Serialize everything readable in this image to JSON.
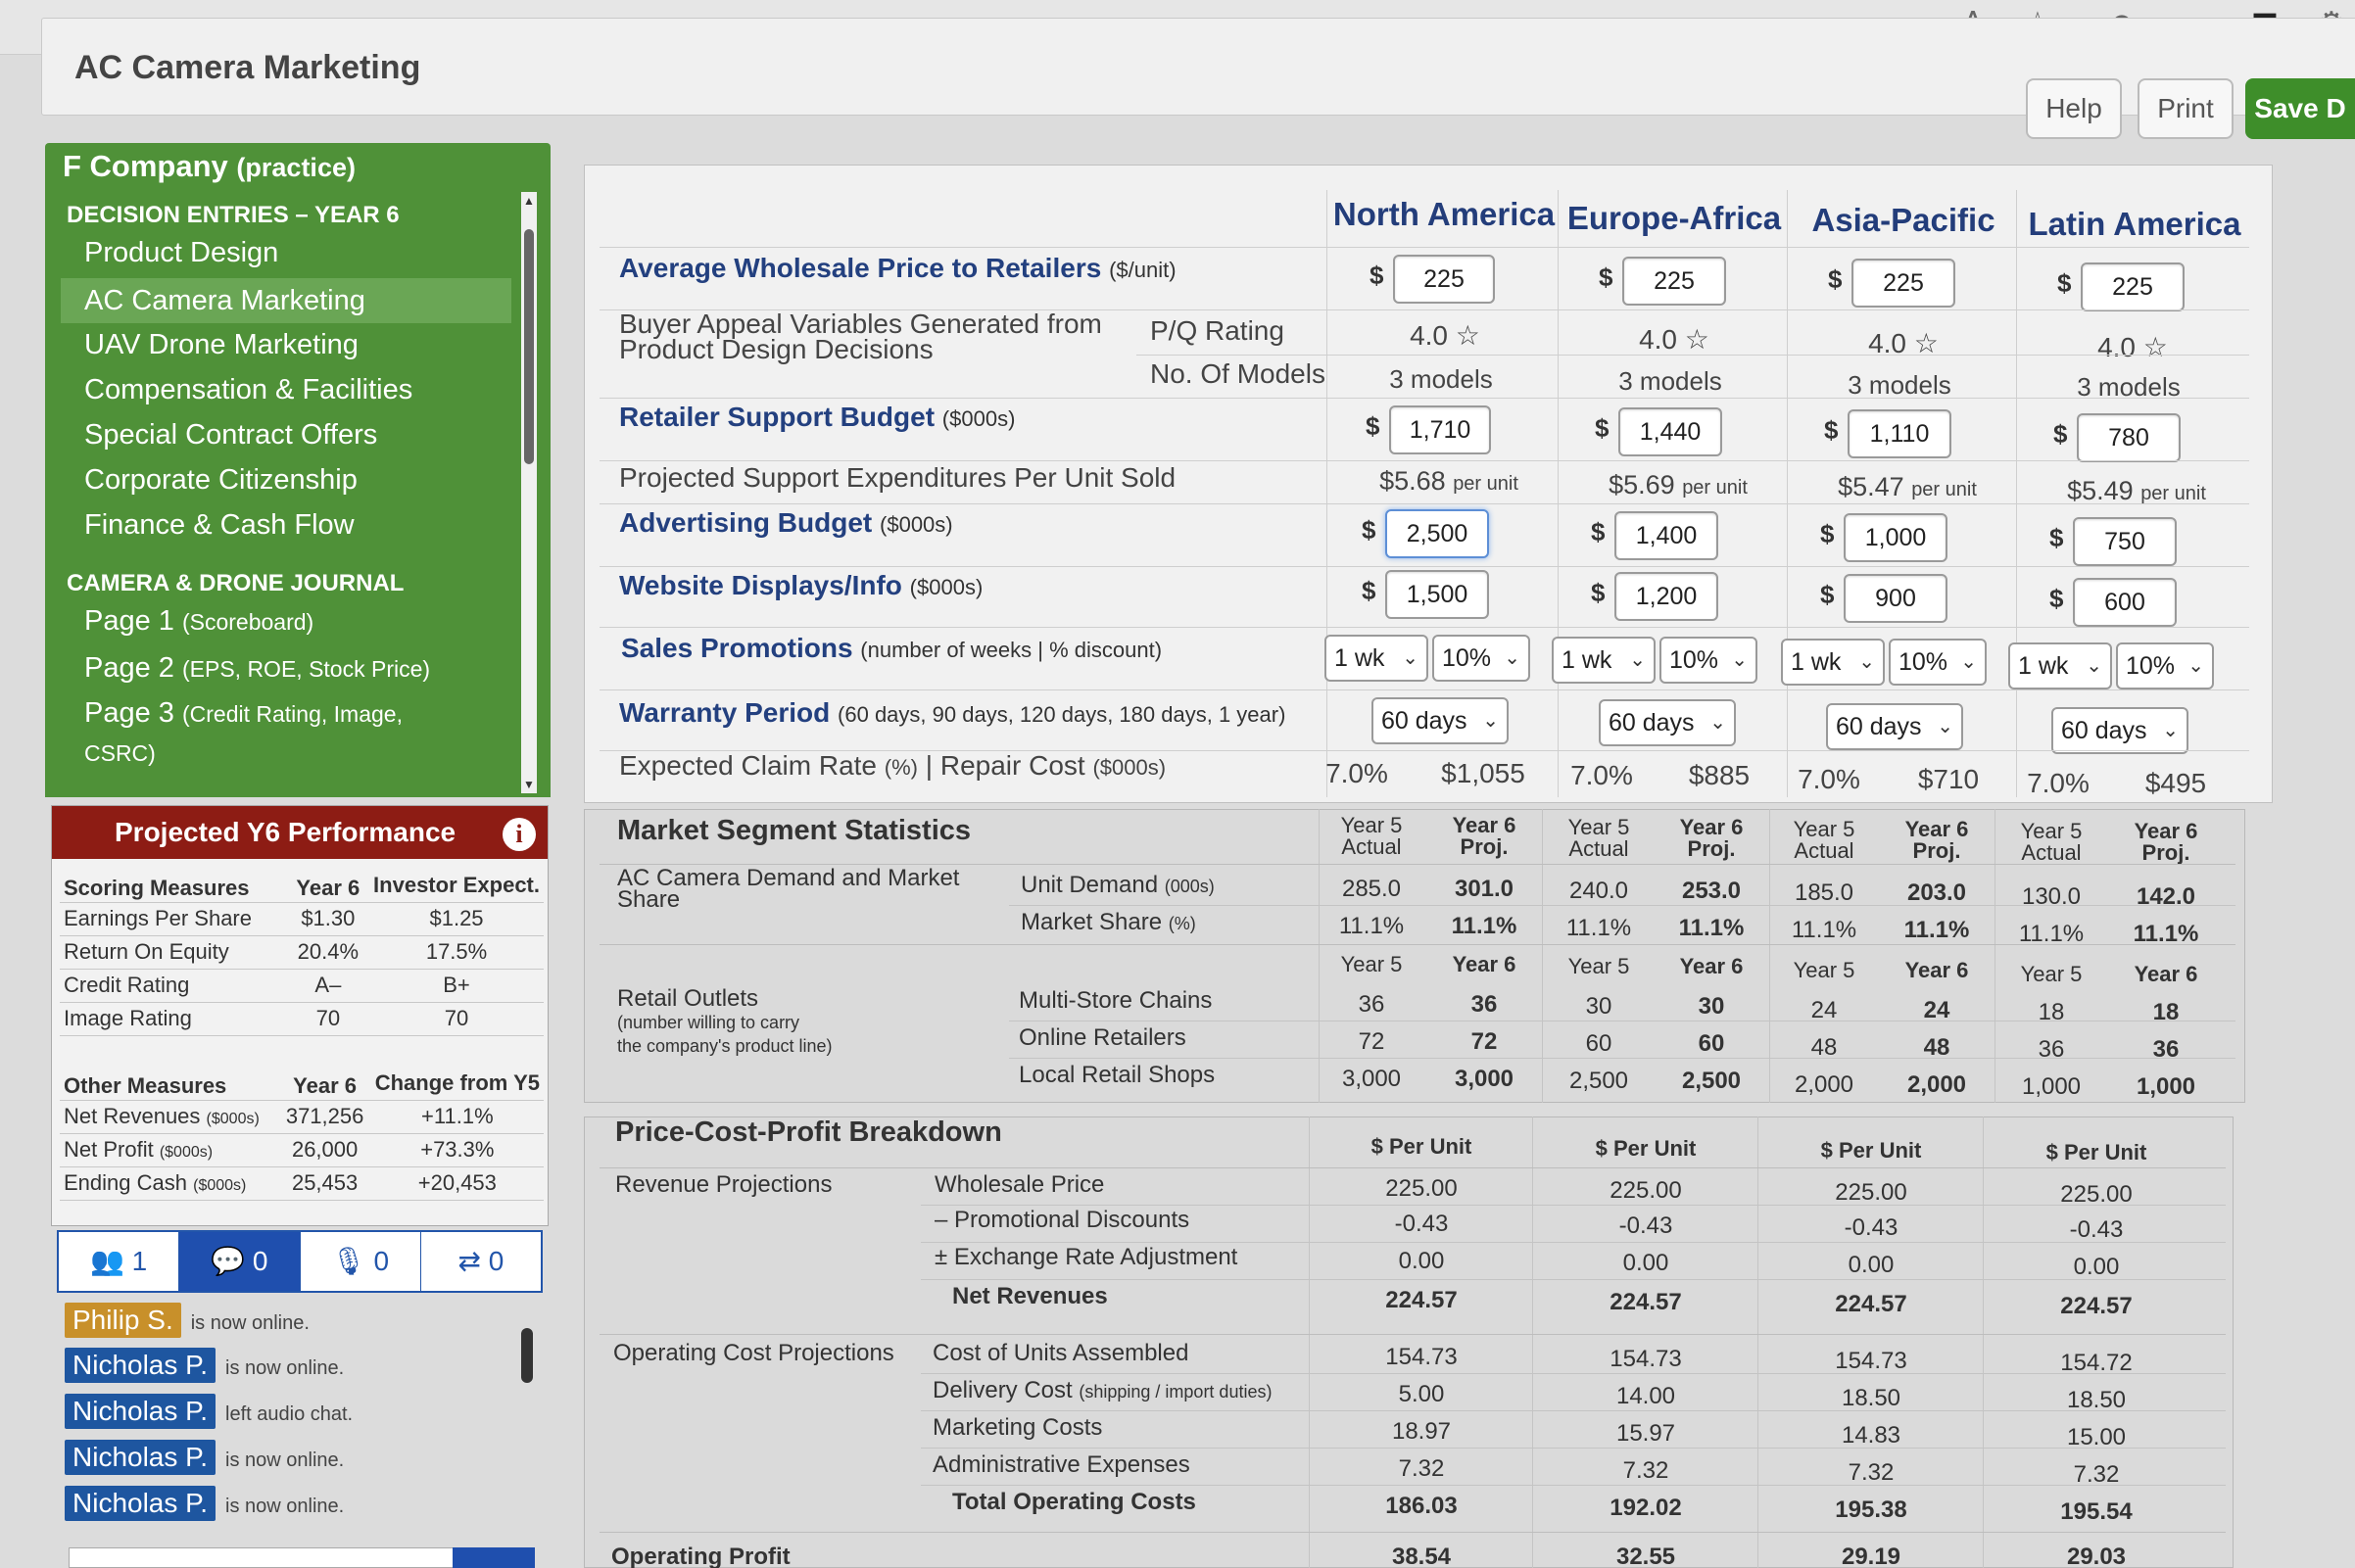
{
  "app": {
    "title": "AC Camera Marketing",
    "buttons": {
      "help": "Help",
      "print": "Print",
      "save": "Save D"
    }
  },
  "sidebar": {
    "company": "F Company",
    "practice": "(practice)",
    "decision_header": "DECISION ENTRIES – YEAR 6",
    "decision_items": [
      "Product Design",
      "AC Camera Marketing",
      "UAV Drone Marketing",
      "Compensation & Facilities",
      "Special Contract Offers",
      "Corporate Citizenship",
      "Finance & Cash Flow"
    ],
    "journal_header": "CAMERA & DRONE JOURNAL",
    "journal_items": [
      {
        "label": "Page 1",
        "sub": "(Scoreboard)"
      },
      {
        "label": "Page 2",
        "sub": "(EPS, ROE, Stock Price)"
      },
      {
        "label": "Page 3",
        "sub": "(Credit Rating, Image,"
      },
      {
        "label": "",
        "sub": "CSRC)"
      }
    ]
  },
  "performance": {
    "title": "Projected Y6 Performance",
    "scoring_headers": [
      "Scoring Measures",
      "Year 6",
      "Investor Expect."
    ],
    "scoring_rows": [
      [
        "Earnings Per Share",
        "$1.30",
        "$1.25"
      ],
      [
        "Return On Equity",
        "20.4%",
        "17.5%"
      ],
      [
        "Credit Rating",
        "A–",
        "B+"
      ],
      [
        "Image Rating",
        "70",
        "70"
      ]
    ],
    "other_headers": [
      "Other Measures",
      "Year 6",
      "Change from Y5"
    ],
    "other_rows": [
      [
        "Net Revenues",
        "($000s)",
        "371,256",
        "+11.1%"
      ],
      [
        "Net Profit",
        "($000s)",
        "26,000",
        "+73.3%"
      ],
      [
        "Ending Cash",
        "($000s)",
        "25,453",
        "+20,453"
      ]
    ]
  },
  "social": {
    "people": "1",
    "chat": "0",
    "audio": "0",
    "share": "0"
  },
  "chat": [
    {
      "name": "Philip S.",
      "msg": "is now online.",
      "type": "orange"
    },
    {
      "name": "Nicholas P.",
      "msg": "is now online.",
      "type": "blue"
    },
    {
      "name": "Nicholas P.",
      "msg": "left audio chat.",
      "type": "blue"
    },
    {
      "name": "Nicholas P.",
      "msg": "is now online.",
      "type": "blue"
    },
    {
      "name": "Nicholas P.",
      "msg": "is now online.",
      "type": "blue"
    }
  ],
  "regions": [
    "North America",
    "Europe-Africa",
    "Asia-Pacific",
    "Latin America"
  ],
  "decisions": {
    "price_label": "Average Wholesale Price to Retailers",
    "price_unit": "($/unit)",
    "price": [
      "225",
      "225",
      "225",
      "225"
    ],
    "appeal_label": "Buyer Appeal Variables Generated from Product Design Decisions",
    "pq_label": "P/Q Rating",
    "pq": [
      "4.0",
      "4.0",
      "4.0",
      "4.0"
    ],
    "models_label": "No. Of Models",
    "models": [
      "3 models",
      "3 models",
      "3 models",
      "3 models"
    ],
    "support_label": "Retailer Support Budget",
    "support_unit": "($000s)",
    "support": [
      "1,710",
      "1,440",
      "1,110",
      "780"
    ],
    "per_unit_label": "Projected Support Expenditures Per Unit Sold",
    "per_unit": [
      "$5.68",
      "$5.69",
      "$5.47",
      "$5.49"
    ],
    "per_unit_suffix": "per unit",
    "adv_label": "Advertising Budget",
    "adv_unit": "($000s)",
    "adv": [
      "2,500",
      "1,400",
      "1,000",
      "750"
    ],
    "web_label": "Website Displays/Info",
    "web_unit": "($000s)",
    "web": [
      "1,500",
      "1,200",
      "900",
      "600"
    ],
    "promo_label": "Sales Promotions",
    "promo_unit": "(number of weeks | % discount)",
    "promo_weeks": [
      "1 wk",
      "1 wk",
      "1 wk",
      "1 wk"
    ],
    "promo_disc": [
      "10%",
      "10%",
      "10%",
      "10%"
    ],
    "warranty_label": "Warranty Period",
    "warranty_unit": "(60 days, 90 days, 120 days, 180 days, 1 year)",
    "warranty": [
      "60 days",
      "60 days",
      "60 days",
      "60 days"
    ],
    "claim_label": "Expected Claim Rate",
    "claim_pct": "(%)",
    "repair_label": "Repair Cost",
    "repair_unit": "($000s)",
    "claim": [
      "7.0%",
      "7.0%",
      "7.0%",
      "7.0%"
    ],
    "repair": [
      "$1,055",
      "$885",
      "$710",
      "$495"
    ]
  },
  "market": {
    "title": "Market Segment Statistics",
    "col_a": "Year 5 Actual",
    "col_b": "Year 6 Proj.",
    "demand_label": "AC Camera Demand and Market Share",
    "unit_demand_label": "Unit Demand",
    "unit_demand_unit": "(000s)",
    "unit_demand": [
      [
        "285.0",
        "301.0"
      ],
      [
        "240.0",
        "253.0"
      ],
      [
        "185.0",
        "203.0"
      ],
      [
        "130.0",
        "142.0"
      ]
    ],
    "share_label": "Market Share",
    "share_unit": "(%)",
    "share": [
      [
        "11.1%",
        "11.1%"
      ],
      [
        "11.1%",
        "11.1%"
      ],
      [
        "11.1%",
        "11.1%"
      ],
      [
        "11.1%",
        "11.1%"
      ]
    ],
    "year5": "Year 5",
    "year6": "Year 6",
    "outlets_label": "Retail Outlets",
    "outlets_sub1": "(number willing to carry",
    "outlets_sub2": "the company's product line)",
    "outlet_rows": [
      {
        "label": "Multi-Store Chains",
        "vals": [
          [
            "36",
            "36"
          ],
          [
            "30",
            "30"
          ],
          [
            "24",
            "24"
          ],
          [
            "18",
            "18"
          ]
        ]
      },
      {
        "label": "Online Retailers",
        "vals": [
          [
            "72",
            "72"
          ],
          [
            "60",
            "60"
          ],
          [
            "48",
            "48"
          ],
          [
            "36",
            "36"
          ]
        ]
      },
      {
        "label": "Local Retail Shops",
        "vals": [
          [
            "3,000",
            "3,000"
          ],
          [
            "2,500",
            "2,500"
          ],
          [
            "2,000",
            "2,000"
          ],
          [
            "1,000",
            "1,000"
          ]
        ]
      }
    ]
  },
  "pcp": {
    "title": "Price-Cost-Profit Breakdown",
    "per_unit": "$ Per Unit",
    "rev_label": "Revenue Projections",
    "rev_rows": [
      {
        "label": "Wholesale Price",
        "vals": [
          "225.00",
          "225.00",
          "225.00",
          "225.00"
        ],
        "bold": false
      },
      {
        "label": "– Promotional Discounts",
        "vals": [
          "-0.43",
          "-0.43",
          "-0.43",
          "-0.43"
        ],
        "bold": false
      },
      {
        "label": "± Exchange Rate Adjustment",
        "vals": [
          "0.00",
          "0.00",
          "0.00",
          "0.00"
        ],
        "bold": false
      },
      {
        "label": "Net Revenues",
        "vals": [
          "224.57",
          "224.57",
          "224.57",
          "224.57"
        ],
        "bold": true
      }
    ],
    "cost_label": "Operating Cost Projections",
    "cost_rows": [
      {
        "label": "Cost of Units Assembled",
        "vals": [
          "154.73",
          "154.73",
          "154.73",
          "154.72"
        ],
        "bold": false
      },
      {
        "label": "Delivery Cost",
        "sub": "(shipping / import duties)",
        "vals": [
          "5.00",
          "14.00",
          "18.50",
          "18.50"
        ],
        "bold": false
      },
      {
        "label": "Marketing Costs",
        "vals": [
          "18.97",
          "15.97",
          "14.83",
          "15.00"
        ],
        "bold": false
      },
      {
        "label": "Administrative Expenses",
        "vals": [
          "7.32",
          "7.32",
          "7.32",
          "7.32"
        ],
        "bold": false
      },
      {
        "label": "Total Operating Costs",
        "vals": [
          "186.03",
          "192.02",
          "195.38",
          "195.54"
        ],
        "bold": true
      }
    ],
    "op_profit_label": "Operating Profit",
    "op_profit": [
      "38.54",
      "32.55",
      "29.19",
      "29.03"
    ]
  },
  "icons": {
    "star": "☆",
    "chevron": "⌄"
  }
}
